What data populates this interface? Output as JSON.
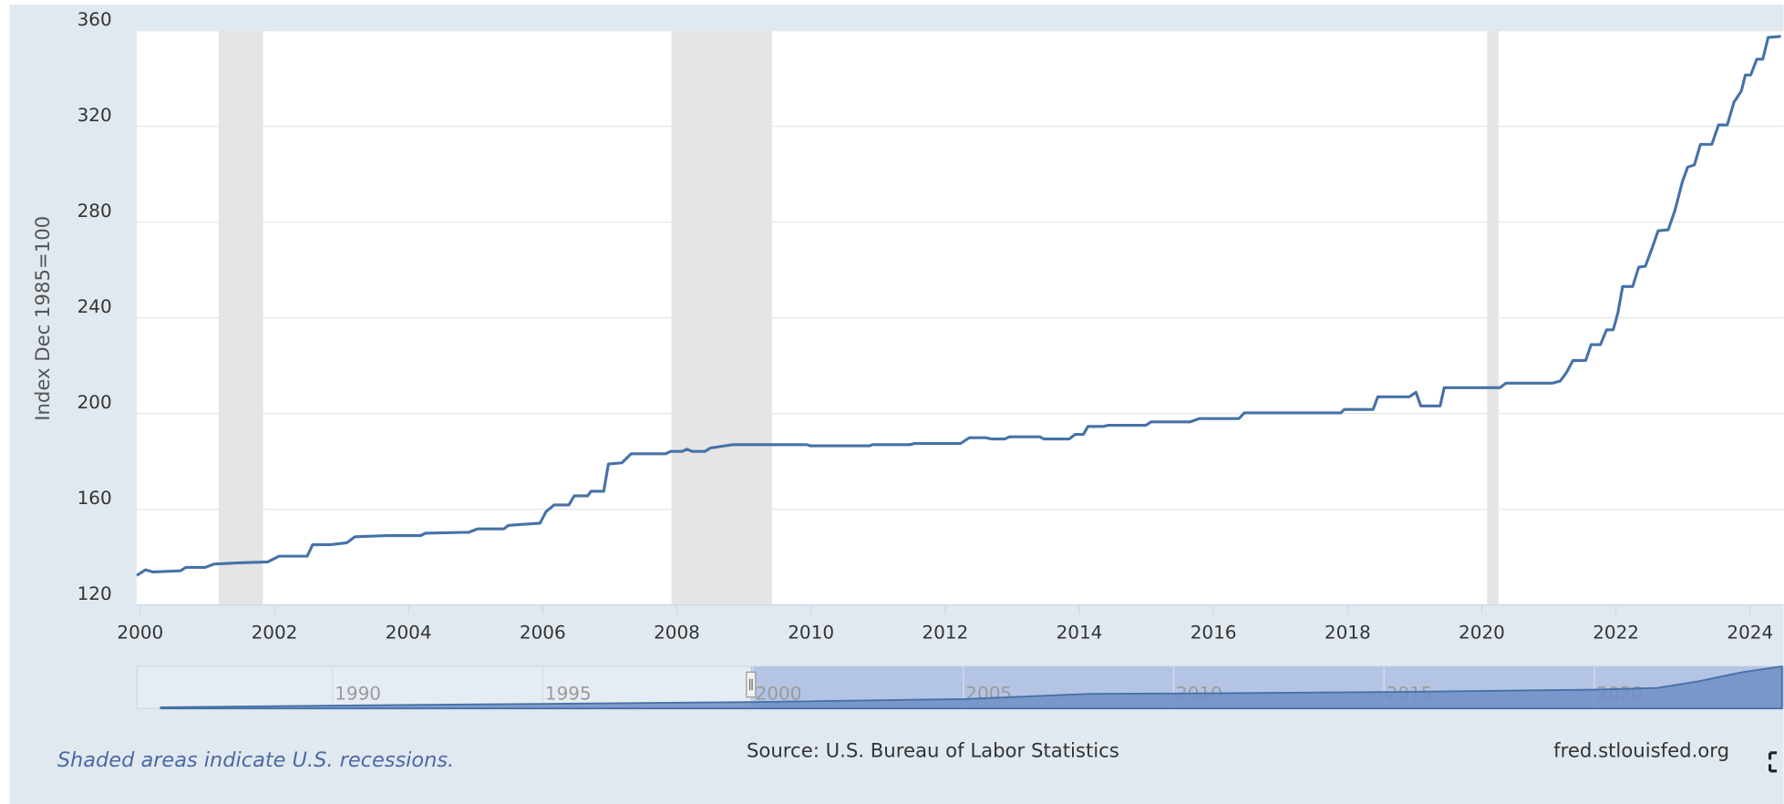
{
  "chart_data": {
    "type": "line",
    "ylabel": "Index Dec 1985=100",
    "note": "Shaded areas indicate U.S. recessions.",
    "source": "Source: U.S. Bureau of Labor Statistics",
    "credit": "fred.stlouisfed.org",
    "color": "#4572a7",
    "xlim": [
      1999.95,
      2024.5
    ],
    "xticks": [
      2000,
      2002,
      2004,
      2006,
      2008,
      2010,
      2012,
      2014,
      2016,
      2018,
      2020,
      2022,
      2024
    ],
    "ylim": [
      120,
      360
    ],
    "yticks": [
      120,
      160,
      200,
      240,
      280,
      320,
      360
    ],
    "grid": true,
    "recessions": [
      [
        2001.17,
        2001.83
      ],
      [
        2007.92,
        2009.42
      ],
      [
        2020.08,
        2020.25
      ]
    ],
    "x": [
      1999.95,
      2000.08,
      2000.19,
      2000.6,
      2000.68,
      2000.97,
      2001.1,
      2001.47,
      2001.9,
      2002.07,
      2002.49,
      2002.57,
      2002.83,
      2003.08,
      2003.2,
      2003.68,
      2004.18,
      2004.25,
      2004.9,
      2005.03,
      2005.42,
      2005.49,
      2005.71,
      2005.96,
      2006.05,
      2006.17,
      2006.39,
      2006.47,
      2006.67,
      2006.72,
      2006.91,
      2006.98,
      2007.18,
      2007.32,
      2007.83,
      2007.91,
      2008.08,
      2008.15,
      2008.23,
      2008.42,
      2008.5,
      2008.71,
      2008.84,
      2009.94,
      2009.99,
      2010.87,
      2010.92,
      2011.47,
      2011.55,
      2012.23,
      2012.36,
      2012.6,
      2012.69,
      2012.89,
      2012.96,
      2013.41,
      2013.47,
      2013.85,
      2013.94,
      2014.06,
      2014.13,
      2014.35,
      2014.43,
      2014.99,
      2015.07,
      2015.65,
      2015.79,
      2016.38,
      2016.46,
      2017.9,
      2017.95,
      2018.38,
      2018.45,
      2018.92,
      2019.02,
      2019.09,
      2019.38,
      2019.44,
      2020.27,
      2020.36,
      2021.05,
      2021.17,
      2021.26,
      2021.36,
      2021.55,
      2021.63,
      2021.77,
      2021.86,
      2021.96,
      2022.03,
      2022.1,
      2022.25,
      2022.34,
      2022.44,
      2022.54,
      2022.63,
      2022.78,
      2022.88,
      2022.99,
      2023.07,
      2023.17,
      2023.26,
      2023.43,
      2023.53,
      2023.66,
      2023.76,
      2023.87,
      2023.93,
      2024.01,
      2024.1,
      2024.19,
      2024.27,
      2024.46
    ],
    "values": [
      132.4,
      134.7,
      133.8,
      134.3,
      135.7,
      135.7,
      137.1,
      137.6,
      138.0,
      140.4,
      140.4,
      145.2,
      145.2,
      146.0,
      148.5,
      149.0,
      149.0,
      150.0,
      150.4,
      151.8,
      151.8,
      153.3,
      153.7,
      154.2,
      159.0,
      161.8,
      161.8,
      165.6,
      165.6,
      167.5,
      167.5,
      178.9,
      179.4,
      183.2,
      183.2,
      184.2,
      184.2,
      185.1,
      184.2,
      184.2,
      185.6,
      186.5,
      187.0,
      187.0,
      186.5,
      186.5,
      187.0,
      187.0,
      187.5,
      187.5,
      189.9,
      189.9,
      189.4,
      189.4,
      190.3,
      190.3,
      189.4,
      189.4,
      191.3,
      191.3,
      194.6,
      194.6,
      195.1,
      195.1,
      196.5,
      196.5,
      197.9,
      197.9,
      200.3,
      200.3,
      201.7,
      201.7,
      207.0,
      207.0,
      208.9,
      203.2,
      203.2,
      210.8,
      210.8,
      212.7,
      212.7,
      213.6,
      217.0,
      222.2,
      222.2,
      228.8,
      228.8,
      235.0,
      235.0,
      242.1,
      253.1,
      253.1,
      261.2,
      261.6,
      269.2,
      276.4,
      276.8,
      284.9,
      296.8,
      303.0,
      303.9,
      312.5,
      312.5,
      320.6,
      320.6,
      330.1,
      334.8,
      341.5,
      341.5,
      348.1,
      348.1,
      357.2,
      357.6
    ],
    "navigator": {
      "xlim": [
        1985.35,
        2024.5
      ],
      "xticks": [
        1990,
        1995,
        2000,
        2005,
        2010,
        2015,
        2020
      ],
      "x": [
        1985.92,
        1990,
        1995,
        2000,
        2005,
        2008,
        2010,
        2015,
        2020,
        2021.5,
        2022.5,
        2023.5,
        2024.46
      ],
      "values": [
        100,
        111,
        122,
        133,
        152,
        185,
        187,
        196,
        211,
        222,
        265,
        320,
        357.6
      ]
    }
  }
}
